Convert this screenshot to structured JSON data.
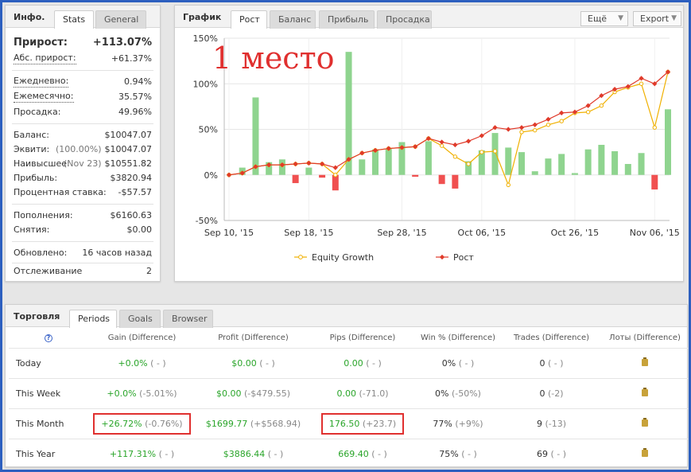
{
  "info": {
    "title": "Инфо.",
    "tabs": [
      "Stats",
      "General"
    ],
    "gain_label": "Прирост:",
    "gain_value": "+113.07%",
    "abs_gain_label": "Абс. прирост:",
    "abs_gain_value": "+61.37%",
    "daily_label": "Ежедневно:",
    "daily_value": "0.94%",
    "monthly_label": "Ежемесячно:",
    "monthly_value": "35.57%",
    "drawdown_label": "Просадка:",
    "drawdown_value": "49.96%",
    "balance_label": "Баланс:",
    "balance_value": "$10047.07",
    "equity_label": "Эквити:",
    "equity_sub": "(100.00%)",
    "equity_value": "$10047.07",
    "highest_label": "Наивысшее:",
    "highest_sub": "(Nov 23)",
    "highest_value": "$10551.82",
    "profit_label": "Прибыль:",
    "profit_value": "$3820.94",
    "interest_label": "Процентная ставка:",
    "interest_value": "-$57.57",
    "deposits_label": "Пополнения:",
    "deposits_value": "$6160.63",
    "withdrawals_label": "Снятия:",
    "withdrawals_value": "$0.00",
    "updated_label": "Обновлено:",
    "updated_value": "16 часов назад",
    "tracking_label": "Отслеживание",
    "tracking_value": "2"
  },
  "chart_panel": {
    "title": "График",
    "tabs": [
      "Рост",
      "Баланс",
      "Прибыль",
      "Просадка"
    ],
    "more_label": "Ещё",
    "export_label": "Export",
    "overlay_text": "1 место"
  },
  "chart_data": {
    "type": "bar",
    "y_tick_labels": [
      "150%",
      "100%",
      "50%",
      "0%",
      "-50%"
    ],
    "x_tick_labels": [
      "Sep 10, '15",
      "Sep 18, '15",
      "Sep 28, '15",
      "Oct 06, '15",
      "Oct 26, '15",
      "Nov 06, '15"
    ],
    "ylim": [
      -50,
      150
    ],
    "grid": true,
    "legend_position": "bottom",
    "colors": {
      "bar_pos": "#8fd48f",
      "bar_neg": "#f05050",
      "equity": "#f0b000",
      "growth": "#e03a2a"
    },
    "bars": [
      0,
      8,
      85,
      14,
      17,
      -9,
      8,
      -3,
      -17,
      135,
      17,
      28,
      29,
      36,
      -2,
      37,
      -10,
      -15,
      15,
      27,
      46,
      30,
      25,
      4,
      18,
      23,
      2,
      28,
      33,
      26,
      12,
      24,
      -16,
      72
    ],
    "series": [
      {
        "name": "Equity Growth",
        "values": [
          0,
          2,
          9,
          11,
          11,
          12,
          13,
          12,
          0,
          17,
          24,
          27,
          29,
          30,
          31,
          40,
          32,
          20,
          12,
          25,
          26,
          -11,
          47,
          49,
          55,
          59,
          68,
          69,
          76,
          91,
          96,
          100,
          52,
          113
        ]
      },
      {
        "name": "Рост",
        "values": [
          0,
          2,
          9,
          11,
          11,
          12,
          13,
          12,
          8,
          17,
          24,
          27,
          29,
          30,
          31,
          40,
          36,
          33,
          37,
          43,
          52,
          50,
          52,
          55,
          61,
          68,
          69,
          76,
          87,
          94,
          97,
          106,
          100,
          113
        ]
      }
    ]
  },
  "trading": {
    "title": "Торговля",
    "tabs": [
      "Periods",
      "Goals",
      "Browser"
    ],
    "help": "?",
    "columns": [
      "Gain (Difference)",
      "Profit (Difference)",
      "Pips (Difference)",
      "Win % (Difference)",
      "Trades (Difference)",
      "Лоты (Difference)"
    ],
    "rows": [
      {
        "period": "Today",
        "gain": "+0.0%",
        "gain_diff": "( - )",
        "profit": "$0.00",
        "profit_diff": "( - )",
        "pips": "0.00",
        "pips_diff": "( - )",
        "win": "0%",
        "win_diff": "( - )",
        "trades": "0",
        "trades_diff": "( - )"
      },
      {
        "period": "This Week",
        "gain": "+0.0%",
        "gain_diff": "(-5.01%)",
        "profit": "$0.00",
        "profit_diff": "(-$479.55)",
        "pips": "0.00",
        "pips_diff": "(-71.0)",
        "win": "0%",
        "win_diff": "(-50%)",
        "trades": "0",
        "trades_diff": "(-2)"
      },
      {
        "period": "This Month",
        "gain": "+26.72%",
        "gain_diff": "(-0.76%)",
        "profit": "$1699.77",
        "profit_diff": "(+$568.94)",
        "pips": "176.50",
        "pips_diff": "(+23.7)",
        "win": "77%",
        "win_diff": "(+9%)",
        "trades": "9",
        "trades_diff": "(-13)"
      },
      {
        "period": "This Year",
        "gain": "+117.31%",
        "gain_diff": "( - )",
        "profit": "$3886.44",
        "profit_diff": "( - )",
        "pips": "669.40",
        "pips_diff": "( - )",
        "win": "75%",
        "win_diff": "( - )",
        "trades": "69",
        "trades_diff": "( - )"
      }
    ]
  }
}
